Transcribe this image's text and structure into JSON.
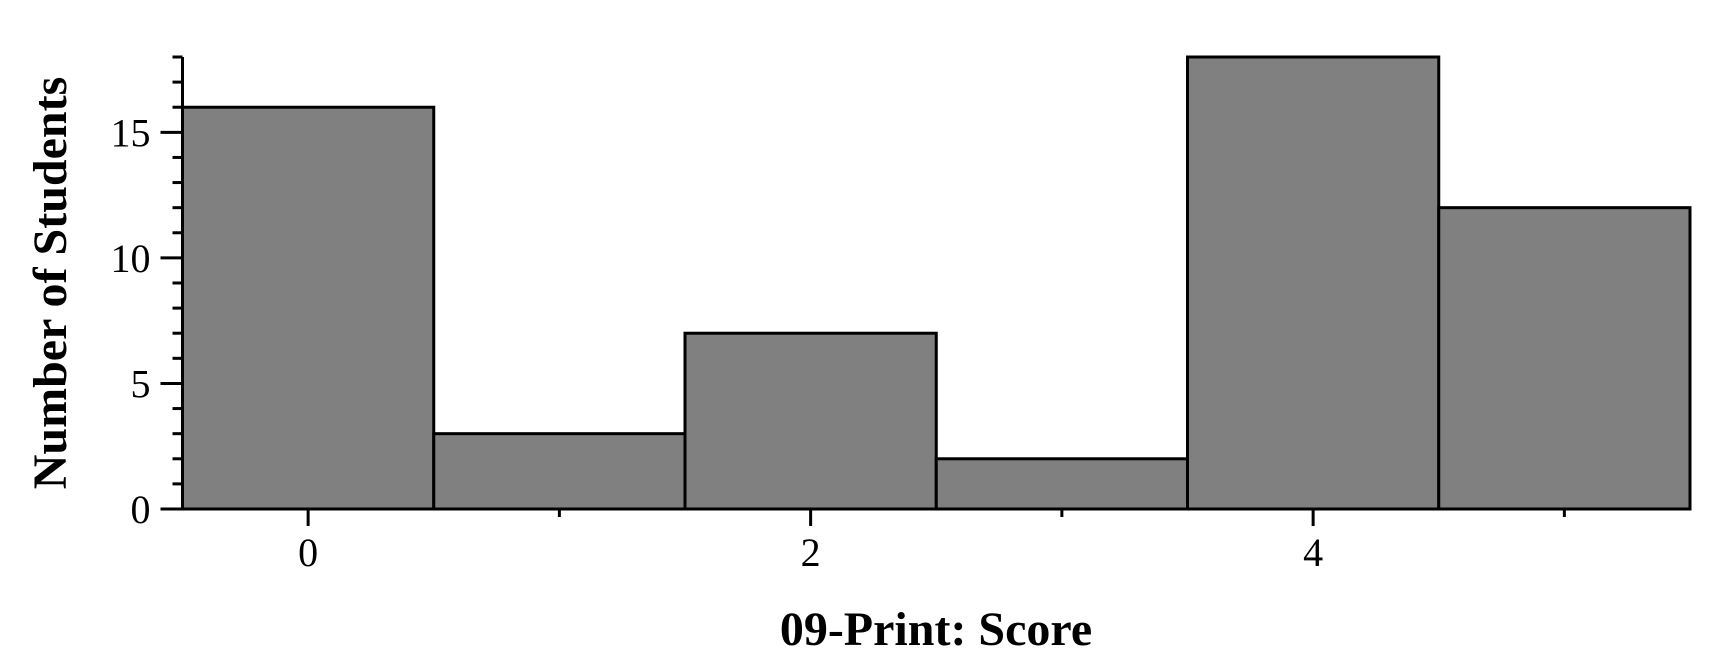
{
  "chart_data": {
    "type": "bar",
    "subtype": "histogram",
    "xlabel": "09-Print: Score",
    "ylabel": "Number of Students",
    "categories": [
      0,
      1,
      2,
      3,
      4,
      5
    ],
    "values": [
      16,
      3,
      7,
      2,
      18,
      12
    ],
    "xlim": [
      -0.5,
      5.5
    ],
    "ylim": [
      0,
      18
    ],
    "xticks": [
      0,
      2,
      4
    ],
    "xminor_ticks": [
      1,
      3,
      5
    ],
    "yticks": [
      0,
      5,
      10,
      15
    ],
    "grid": false,
    "colors": {
      "bar_fill": "#808080",
      "bar_edge": "#000000"
    }
  }
}
